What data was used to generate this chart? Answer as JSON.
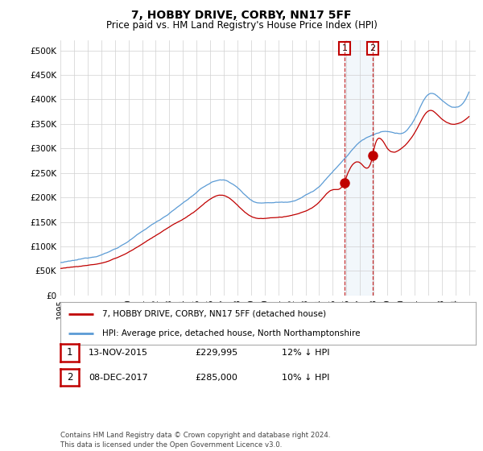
{
  "title": "7, HOBBY DRIVE, CORBY, NN17 5FF",
  "subtitle": "Price paid vs. HM Land Registry's House Price Index (HPI)",
  "ytick_values": [
    0,
    50000,
    100000,
    150000,
    200000,
    250000,
    300000,
    350000,
    400000,
    450000,
    500000
  ],
  "ylim": [
    0,
    520000
  ],
  "xlim_start": 1995.0,
  "xlim_end": 2025.5,
  "hpi_color": "#5b9bd5",
  "price_color": "#c00000",
  "marker1_date": 2015.87,
  "marker1_price": 229995,
  "marker2_date": 2017.93,
  "marker2_price": 285000,
  "shade_x1": 2015.87,
  "shade_x2": 2017.93,
  "legend_label_red": "7, HOBBY DRIVE, CORBY, NN17 5FF (detached house)",
  "legend_label_blue": "HPI: Average price, detached house, North Northamptonshire",
  "footer": "Contains HM Land Registry data © Crown copyright and database right 2024.\nThis data is licensed under the Open Government Licence v3.0.",
  "background_color": "#ffffff",
  "hpi_anchors_x": [
    1995,
    1997,
    1999,
    2001,
    2003,
    2005,
    2007,
    2008,
    2009,
    2010,
    2011,
    2012,
    2013,
    2014,
    2015,
    2016,
    2017,
    2018,
    2019,
    2020,
    2021,
    2022,
    2023,
    2024,
    2025
  ],
  "hpi_anchors_y": [
    67000,
    75000,
    95000,
    130000,
    168000,
    210000,
    235000,
    220000,
    195000,
    190000,
    192000,
    195000,
    208000,
    225000,
    255000,
    285000,
    315000,
    330000,
    335000,
    330000,
    360000,
    410000,
    400000,
    385000,
    415000
  ],
  "price_anchors_x": [
    1995,
    1997,
    1999,
    2001,
    2003,
    2005,
    2007,
    2008,
    2009,
    2010,
    2011,
    2012,
    2013,
    2014,
    2015,
    2015.87,
    2016,
    2017,
    2017.93,
    2018,
    2019,
    2020,
    2021,
    2022,
    2023,
    2024,
    2025
  ],
  "price_anchors_y": [
    55000,
    62000,
    75000,
    105000,
    140000,
    175000,
    205000,
    185000,
    162000,
    158000,
    160000,
    163000,
    172000,
    190000,
    215000,
    229995,
    240000,
    270000,
    285000,
    295000,
    300000,
    298000,
    330000,
    375000,
    360000,
    350000,
    365000
  ]
}
